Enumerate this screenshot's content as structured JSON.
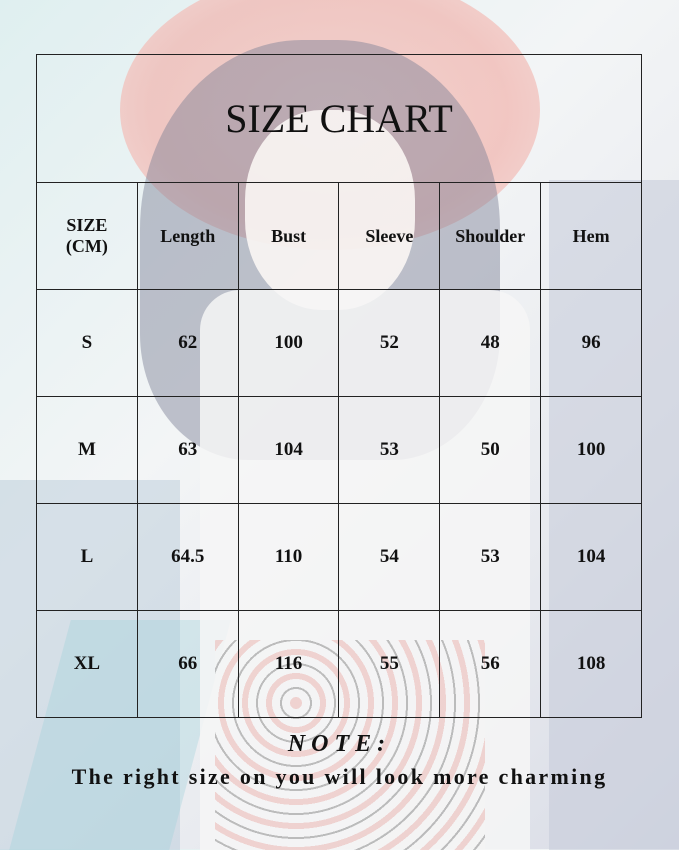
{
  "title": "SIZE CHART",
  "headers": [
    "SIZE\n(CM)",
    "Length",
    "Bust",
    "Sleeve",
    "Shoulder",
    "Hem"
  ],
  "header_size_line1": "SIZE",
  "header_size_line2": "(CM)",
  "rows": [
    [
      "S",
      "62",
      "100",
      "52",
      "48",
      "96"
    ],
    [
      "M",
      "63",
      "104",
      "53",
      "50",
      "100"
    ],
    [
      "L",
      "64.5",
      "110",
      "54",
      "53",
      "104"
    ],
    [
      "XL",
      "66",
      "116",
      "55",
      "56",
      "108"
    ]
  ],
  "note": {
    "title": "NOTE:",
    "text": "The right size on you will look more charming"
  },
  "colors": {
    "grid": "#222222",
    "hat": "#f1b7b1",
    "text": "#111111"
  }
}
